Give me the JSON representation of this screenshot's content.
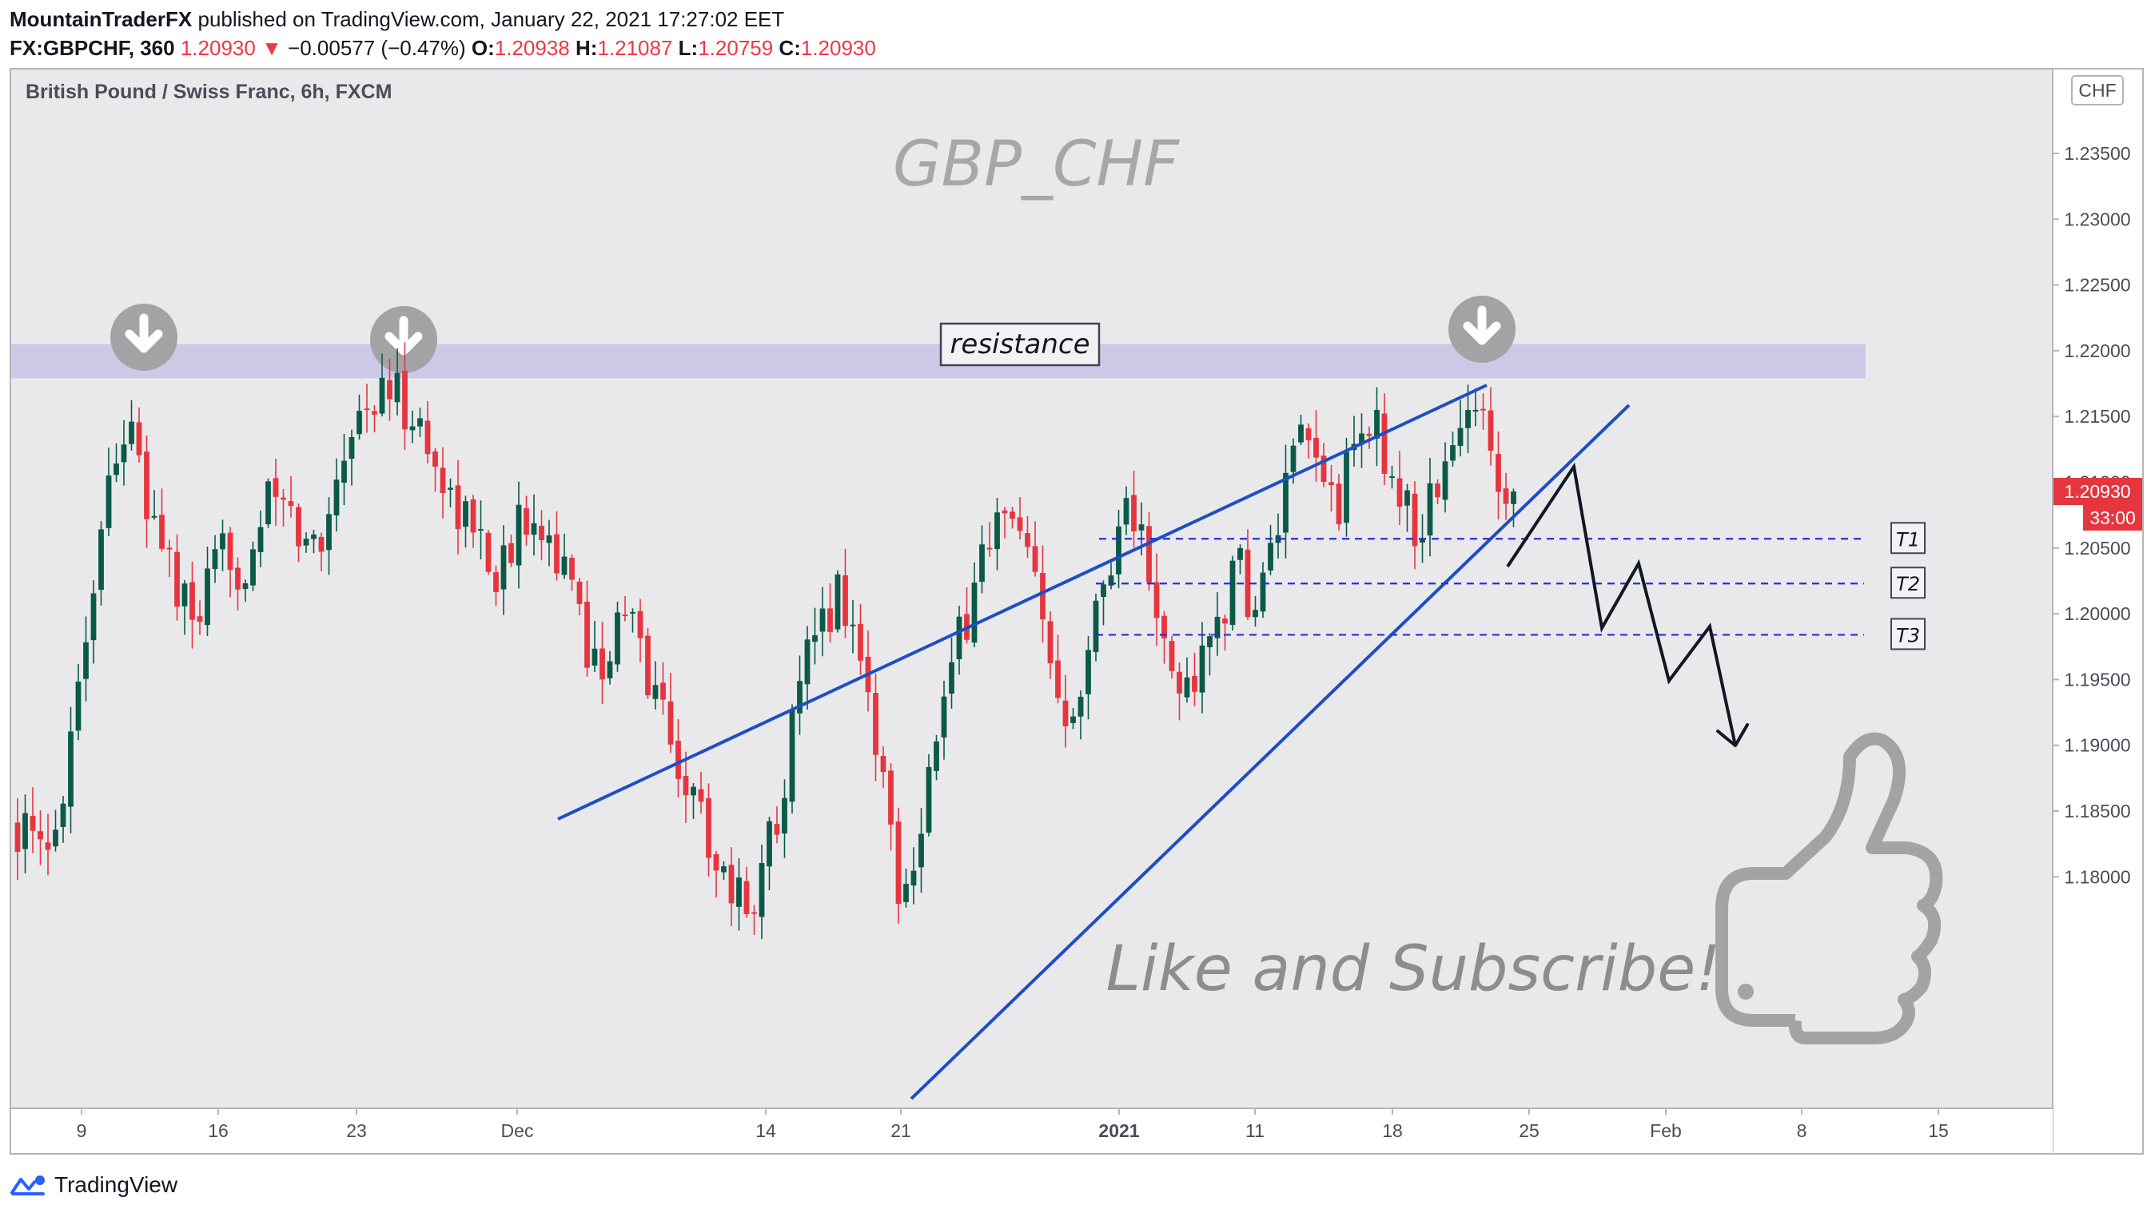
{
  "header": {
    "author": "MountainTraderFX",
    "published_text": "published on TradingView.com, January 22, 2021 17:27:02 EET",
    "symbol": "FX:GBPCHF, 360",
    "last": "1.20930",
    "change_arrow": "▼",
    "change": "−0.00577 (−0.47%)",
    "o_label": "O:",
    "o_value": "1.20938",
    "h_label": "H:",
    "h_value": "1.21087",
    "l_label": "L:",
    "l_value": "1.20759",
    "c_label": "C:",
    "c_value": "1.20930"
  },
  "footer": {
    "brand": "TradingView"
  },
  "colors": {
    "bull": "#0b5a47",
    "bear": "#e5363f",
    "trend": "#1d4ec4",
    "target": "#2b2bd6",
    "zone": "#cdc8e6",
    "background": "#e9e9ec",
    "price_tag": "#e5363f",
    "watermark": "#a3a3a6"
  },
  "chart_data": {
    "type": "candlestick",
    "title": "British Pound / Swiss Franc, 6h, FXCM",
    "watermark_title": "GBP_CHF",
    "currency": "CHF",
    "y_ticks": [
      "1.23500",
      "1.23000",
      "1.22500",
      "1.22000",
      "1.21500",
      "1.21000",
      "1.20500",
      "1.20000",
      "1.19500",
      "1.19000",
      "1.18500",
      "1.18000"
    ],
    "ylim": [
      1.1775,
      1.2405
    ],
    "x_ticks": [
      {
        "label": "9",
        "bold": false
      },
      {
        "label": "16",
        "bold": false
      },
      {
        "label": "23",
        "bold": false
      },
      {
        "label": "Dec",
        "bold": false
      },
      {
        "label": "14",
        "bold": false
      },
      {
        "label": "21",
        "bold": false
      },
      {
        "label": "2021",
        "bold": true
      },
      {
        "label": "11",
        "bold": false
      },
      {
        "label": "18",
        "bold": false
      },
      {
        "label": "25",
        "bold": false
      },
      {
        "label": "Feb",
        "bold": false
      },
      {
        "label": "8",
        "bold": false
      },
      {
        "label": "15",
        "bold": false
      }
    ],
    "current_price": "1.20930",
    "countdown": "33:00",
    "resistance_zone": [
      1.2179,
      1.2205
    ],
    "resistance_label": "resistance",
    "targets": [
      {
        "label": "T1",
        "price": 1.2057
      },
      {
        "label": "T2",
        "price": 1.2023
      },
      {
        "label": "T3",
        "price": 1.1984
      }
    ],
    "annotation": "Like and Subscribe!",
    "close_path": [
      1.184,
      1.182,
      1.181,
      1.189,
      1.197,
      1.205,
      1.213,
      1.214,
      1.208,
      1.206,
      1.201,
      1.199,
      1.202,
      1.205,
      1.203,
      1.207,
      1.209,
      1.207,
      1.205,
      1.206,
      1.212,
      1.215,
      1.216,
      1.217,
      1.216,
      1.214,
      1.211,
      1.209,
      1.207,
      1.205,
      1.203,
      1.206,
      1.209,
      1.206,
      1.203,
      1.199,
      1.196,
      1.198,
      1.2,
      1.196,
      1.193,
      1.189,
      1.186,
      1.183,
      1.18,
      1.178,
      1.179,
      1.184,
      1.19,
      1.196,
      1.199,
      1.202,
      1.199,
      1.193,
      1.186,
      1.178,
      1.184,
      1.19,
      1.195,
      1.2,
      1.205,
      1.207,
      1.206,
      1.203,
      1.197,
      1.193,
      1.195,
      1.2,
      1.205,
      1.209,
      1.205,
      1.198,
      1.194,
      1.195,
      1.197,
      1.201,
      1.203,
      1.2,
      1.205,
      1.21,
      1.213,
      1.211,
      1.208,
      1.212,
      1.215,
      1.212,
      1.209,
      1.206,
      1.209,
      1.212,
      1.214,
      1.217,
      1.211,
      1.2093
    ]
  }
}
